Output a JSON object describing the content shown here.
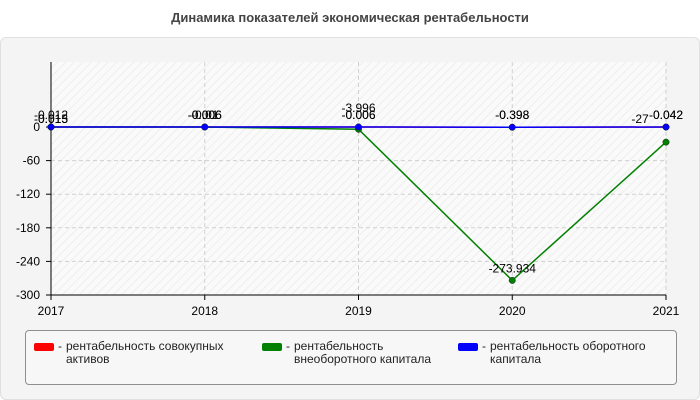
{
  "title": "Динамика показателей экономическая рентабельности",
  "chart_data": {
    "type": "line",
    "x": [
      "2017",
      "2018",
      "2019",
      "2020",
      "2021"
    ],
    "ylim": [
      -300,
      0
    ],
    "yticks": [
      0,
      -60,
      -120,
      -180,
      -240,
      -300
    ],
    "grid": true,
    "legend_position": "bottom",
    "series": [
      {
        "name": "рентабельность совокупных активов",
        "color": "#ff0000",
        "values": [
          -0.012,
          -0.006,
          -0.006,
          -0.398,
          -0.042
        ],
        "labels": [
          "-0.012",
          "-0.006",
          "-0.006",
          "-0.398",
          "-0.042"
        ]
      },
      {
        "name": "рентабельность внеоборотного капитала",
        "color": "#008000",
        "values": [
          -0.015,
          -0.006,
          -3.996,
          -273.934,
          -27
        ],
        "labels": [
          "-0.015",
          "-0.006",
          "-3.996",
          "-273.934",
          "-27"
        ]
      },
      {
        "name": "рентабельность оборотного капитала",
        "color": "#0000ff",
        "values": [
          -0.013,
          -0.01,
          -0.006,
          -0.398,
          -0.042
        ],
        "labels": [
          "-0.013",
          "-0.01",
          "-0.006",
          "-0.398",
          "-0.042"
        ]
      }
    ]
  }
}
